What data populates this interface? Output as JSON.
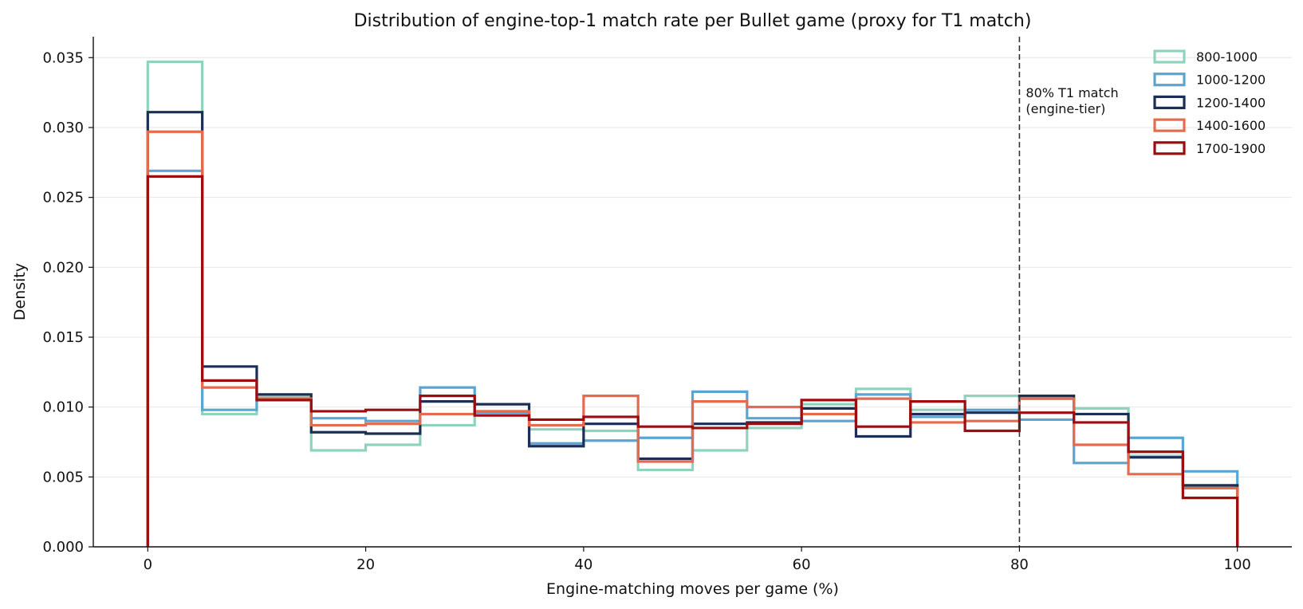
{
  "chart_data": {
    "type": "histogram-step",
    "title": "Distribution of engine-top-1 match rate per Bullet game (proxy for T1 match)",
    "xlabel": "Engine-matching moves per game (%)",
    "ylabel": "Density",
    "xlim": [
      -5,
      105
    ],
    "ylim": [
      0,
      0.0365
    ],
    "x_ticks": [
      0,
      20,
      40,
      60,
      80,
      100
    ],
    "y_ticks": [
      0.0,
      0.005,
      0.01,
      0.015,
      0.02,
      0.025,
      0.03,
      0.035
    ],
    "y_tick_labels": [
      "0.000",
      "0.005",
      "0.010",
      "0.015",
      "0.020",
      "0.025",
      "0.030",
      "0.035"
    ],
    "grid": "horizontal",
    "legend_position": "top-right",
    "bin_edges": [
      0,
      5,
      10,
      15,
      20,
      25,
      30,
      35,
      40,
      45,
      50,
      55,
      60,
      65,
      70,
      75,
      80,
      85,
      90,
      95,
      100
    ],
    "series": [
      {
        "name": "800-1000",
        "color": "#8fd3bd",
        "values": [
          0.0347,
          0.0095,
          0.0107,
          0.0069,
          0.0073,
          0.0087,
          0.0097,
          0.0084,
          0.0083,
          0.0055,
          0.0069,
          0.0085,
          0.0102,
          0.0113,
          0.0098,
          0.0108,
          0.0106,
          0.0099,
          0.0065,
          0.0043
        ]
      },
      {
        "name": "1000-1200",
        "color": "#5aa5d1",
        "values": [
          0.0269,
          0.0098,
          0.0105,
          0.0092,
          0.009,
          0.0114,
          0.0096,
          0.0074,
          0.0076,
          0.0078,
          0.0111,
          0.0092,
          0.009,
          0.0109,
          0.0093,
          0.0098,
          0.0091,
          0.006,
          0.0078,
          0.0054
        ]
      },
      {
        "name": "1200-1400",
        "color": "#1b2f55",
        "values": [
          0.0311,
          0.0129,
          0.0109,
          0.0082,
          0.0081,
          0.0104,
          0.0102,
          0.0072,
          0.0088,
          0.0063,
          0.0088,
          0.0089,
          0.0099,
          0.0079,
          0.0095,
          0.0096,
          0.0108,
          0.0095,
          0.0064,
          0.0044
        ]
      },
      {
        "name": "1400-1600",
        "color": "#e56b4e",
        "values": [
          0.0297,
          0.0114,
          0.0106,
          0.0087,
          0.0088,
          0.0095,
          0.0097,
          0.0087,
          0.0108,
          0.0061,
          0.0104,
          0.01,
          0.0095,
          0.0106,
          0.0089,
          0.009,
          0.0106,
          0.0073,
          0.0052,
          0.0042
        ]
      },
      {
        "name": "1700-1900",
        "color": "#9b0d10",
        "values": [
          0.0265,
          0.0119,
          0.0105,
          0.0097,
          0.0098,
          0.0108,
          0.0094,
          0.0091,
          0.0093,
          0.0086,
          0.0085,
          0.0088,
          0.0105,
          0.0086,
          0.0104,
          0.0083,
          0.0096,
          0.0089,
          0.0068,
          0.0035
        ]
      }
    ],
    "reference_line": {
      "x": 80,
      "style": "dashed",
      "color": "#333333",
      "label_line1": "80% T1 match",
      "label_line2": "(engine-tier)"
    }
  }
}
